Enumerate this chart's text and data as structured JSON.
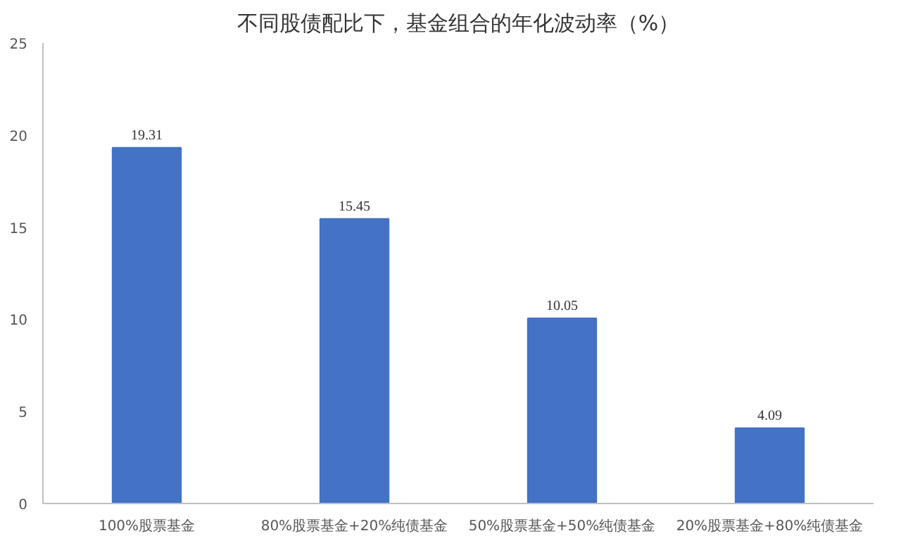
{
  "chart_data": {
    "type": "bar",
    "title": "不同股债配比下，基金组合的年化波动率（%）",
    "categories": [
      "100%股票基金",
      "80%股票基金+20%纯债基金",
      "50%股票基金+50%纯债基金",
      "20%股票基金+80%纯债基金"
    ],
    "values": [
      19.31,
      15.45,
      10.05,
      4.09
    ],
    "value_labels": [
      "19.31",
      "15.45",
      "10.05",
      "4.09"
    ],
    "color": "#4472c4",
    "ylim": [
      0,
      25
    ],
    "yticks": [
      0,
      5,
      10,
      15,
      20,
      25
    ],
    "grid": false
  }
}
